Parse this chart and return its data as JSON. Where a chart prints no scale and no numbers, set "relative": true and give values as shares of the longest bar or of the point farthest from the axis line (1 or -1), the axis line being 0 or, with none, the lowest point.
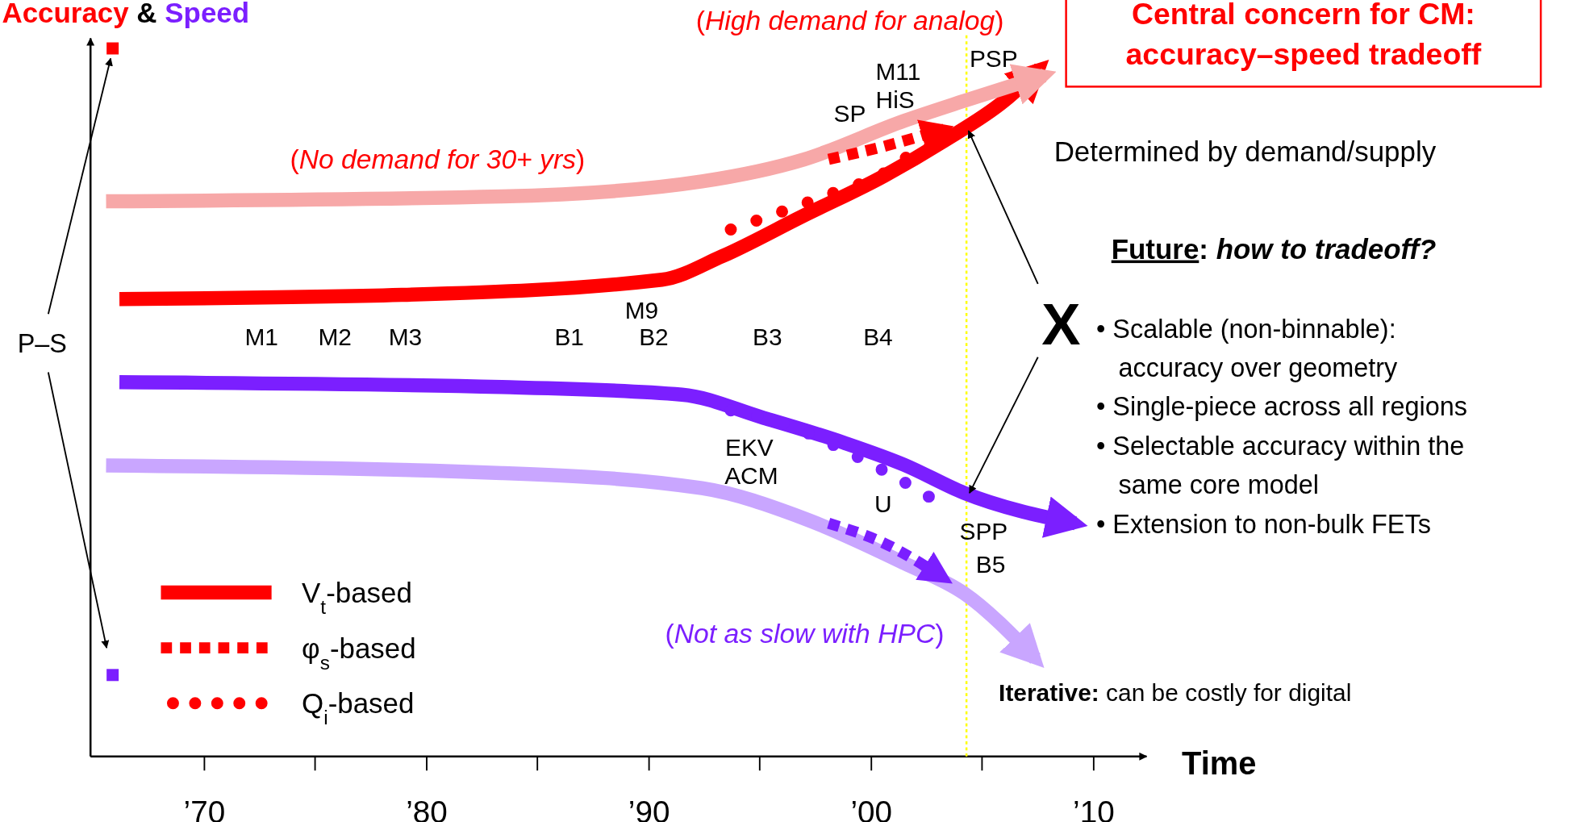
{
  "chart_data": {
    "type": "line",
    "relative": true,
    "ylabel": "Accuracy & Speed",
    "xlabel": "Time",
    "xlim": [
      1964.9,
      2012.4
    ],
    "xticks": [
      {
        "value": 1970,
        "label": "’70"
      },
      {
        "value": 1980,
        "label": "’80"
      },
      {
        "value": 1990,
        "label": "’90"
      },
      {
        "value": 2000,
        "label": "’00"
      },
      {
        "value": 2010,
        "label": "’10"
      }
    ],
    "tick_labels": "x",
    "legend": "bottom left",
    "series": [
      {
        "name": "V$_{t}$-based",
        "color": "#ff0000",
        "line_style": "solid",
        "x": [
          1966.2,
          1978.9,
          1990.6,
          1993.3,
          1996.9,
          2000.6,
          2003.3,
          2006.0,
          2007.6
        ],
        "values": [
          0.665,
          0.671,
          0.693,
          0.727,
          0.785,
          0.844,
          0.895,
          0.953,
          1.0
        ]
      },
      {
        "color": "#f7a8a8",
        "line_style": "solid",
        "x": [
          1965.6,
          1983.4,
          1992.4,
          1997.0,
          2001.5,
          2004.2,
          2007.8
        ],
        "values": [
          0.807,
          0.814,
          0.836,
          0.868,
          0.924,
          0.953,
          0.99
        ]
      },
      {
        "name": "φ$_{s}$-based",
        "color": "#ff0000",
        "line_style": "dashed",
        "x": [
          1998.1,
          2000.6,
          2003.3
        ],
        "values": [
          0.868,
          0.887,
          0.912
        ]
      },
      {
        "name": "Q$_{i}$-based",
        "color": "#ff0000",
        "line_style": "dotted",
        "x": [
          1993.7,
          1996.0,
          1998.3,
          2000.6,
          2001.9,
          2003.5
        ],
        "values": [
          0.766,
          0.792,
          0.819,
          0.848,
          0.877,
          0.898
        ]
      },
      {
        "color": "#7b1fff",
        "line_style": "solid",
        "x": [
          1966.2,
          1983.4,
          1991.5,
          1995.1,
          1998.8,
          2001.5,
          2004.2,
          2009.2
        ],
        "values": [
          0.544,
          0.537,
          0.526,
          0.493,
          0.456,
          0.424,
          0.383,
          0.339
        ]
      },
      {
        "color": "#c9a6ff",
        "line_style": "solid",
        "x": [
          1965.6,
          1983.4,
          1992.4,
          1997.0,
          2001.5,
          2004.2,
          2007.4
        ],
        "values": [
          0.423,
          0.412,
          0.39,
          0.346,
          0.281,
          0.237,
          0.142
        ]
      },
      {
        "color": "#7b1fff",
        "line_style": "dashed",
        "x": [
          1998.1,
          2000.6,
          2003.3
        ],
        "values": [
          0.339,
          0.31,
          0.259
        ]
      },
      {
        "color": "#7b1fff",
        "line_style": "dotted",
        "x": [
          1993.7,
          1996.0,
          1998.3,
          2000.6,
          2001.7,
          2002.8
        ],
        "values": [
          0.503,
          0.485,
          0.453,
          0.415,
          0.395,
          0.374
        ]
      }
    ],
    "ref_lines": [
      {
        "axis": "x",
        "value": 2004.3,
        "color": "#ffff00",
        "line_style": "dotted"
      }
    ],
    "annotations": [
      "M1",
      "M2",
      "M3",
      "B1",
      "B2",
      "M9",
      "B3",
      "B4",
      "EKV",
      "ACM",
      "U",
      "SPP",
      "B5",
      "SP",
      "HiS",
      "M11",
      "PSP",
      "(No demand for 30+ yrs)",
      "(High demand for analog)",
      "(Not as slow with HPC)",
      "Central concern for CM:\naccuracy–speed tradeoff",
      "Determined by demand/supply",
      "Future: how to tradeoff?",
      "• Scalable (non-binnable):\naccuracy over geometry",
      "• Single-piece across all regions",
      "• Selectable accuracy within the\nsame core model",
      "• Extension to non-bulk FETs",
      "Iterative: can be costly for digital",
      "X",
      "P–S"
    ]
  }
}
